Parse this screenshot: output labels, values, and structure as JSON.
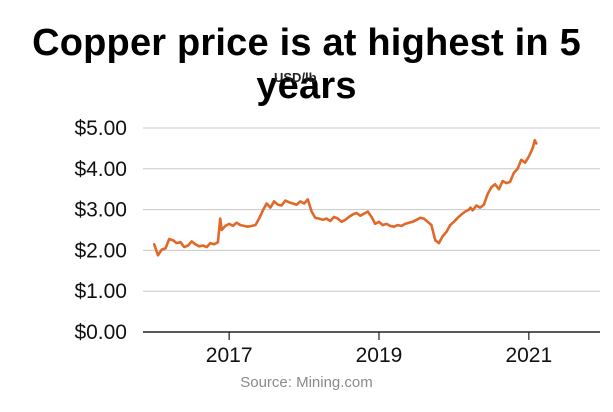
{
  "chart_data": {
    "type": "line",
    "title": "Copper price is at highest in 5 years",
    "subtitle": "USD/lb",
    "source": "Source: Mining.com",
    "ylim": [
      0,
      5
    ],
    "y_ticks": [
      {
        "value": 0,
        "label": "$0.00"
      },
      {
        "value": 1,
        "label": "$1.00"
      },
      {
        "value": 2,
        "label": "$2.00"
      },
      {
        "value": 3,
        "label": "$3.00"
      },
      {
        "value": 4,
        "label": "$4.00"
      },
      {
        "value": 5,
        "label": "$5.00"
      }
    ],
    "xlim": [
      2015.85,
      2021.95
    ],
    "x_ticks": [
      {
        "value": 2017,
        "label": "2017"
      },
      {
        "value": 2019,
        "label": "2019"
      },
      {
        "value": 2021,
        "label": "2021"
      }
    ],
    "grid": true,
    "series": [
      {
        "color": "#e0692a",
        "x": [
          2016.0,
          2016.05,
          2016.1,
          2016.15,
          2016.2,
          2016.25,
          2016.3,
          2016.35,
          2016.4,
          2016.45,
          2016.5,
          2016.55,
          2016.6,
          2016.65,
          2016.7,
          2016.75,
          2016.8,
          2016.85,
          2016.88,
          2016.9,
          2016.95,
          2017.0,
          2017.05,
          2017.1,
          2017.15,
          2017.2,
          2017.25,
          2017.3,
          2017.35,
          2017.4,
          2017.45,
          2017.5,
          2017.55,
          2017.6,
          2017.65,
          2017.7,
          2017.75,
          2017.8,
          2017.85,
          2017.9,
          2017.95,
          2018.0,
          2018.05,
          2018.1,
          2018.15,
          2018.2,
          2018.25,
          2018.3,
          2018.35,
          2018.4,
          2018.45,
          2018.5,
          2018.55,
          2018.6,
          2018.65,
          2018.7,
          2018.75,
          2018.8,
          2018.85,
          2018.9,
          2018.95,
          2019.0,
          2019.05,
          2019.1,
          2019.15,
          2019.2,
          2019.25,
          2019.3,
          2019.35,
          2019.4,
          2019.45,
          2019.5,
          2019.55,
          2019.6,
          2019.65,
          2019.7,
          2019.75,
          2019.8,
          2019.85,
          2019.9,
          2019.95,
          2020.0,
          2020.05,
          2020.1,
          2020.15,
          2020.2,
          2020.22,
          2020.25,
          2020.3,
          2020.35,
          2020.4,
          2020.45,
          2020.5,
          2020.55,
          2020.6,
          2020.65,
          2020.7,
          2020.75,
          2020.8,
          2020.85,
          2020.9,
          2020.95,
          2021.0,
          2021.05,
          2021.08,
          2021.1
        ],
        "y": [
          2.15,
          1.88,
          2.02,
          2.05,
          2.28,
          2.25,
          2.18,
          2.2,
          2.08,
          2.12,
          2.22,
          2.15,
          2.1,
          2.12,
          2.08,
          2.18,
          2.15,
          2.2,
          2.78,
          2.5,
          2.6,
          2.65,
          2.6,
          2.68,
          2.62,
          2.6,
          2.58,
          2.6,
          2.62,
          2.78,
          2.98,
          3.15,
          3.05,
          3.2,
          3.12,
          3.1,
          3.22,
          3.18,
          3.15,
          3.12,
          3.2,
          3.15,
          3.25,
          2.95,
          2.8,
          2.78,
          2.75,
          2.78,
          2.72,
          2.82,
          2.78,
          2.7,
          2.75,
          2.82,
          2.88,
          2.92,
          2.85,
          2.9,
          2.95,
          2.82,
          2.65,
          2.7,
          2.62,
          2.65,
          2.6,
          2.58,
          2.62,
          2.6,
          2.65,
          2.68,
          2.7,
          2.75,
          2.8,
          2.78,
          2.7,
          2.62,
          2.25,
          2.18,
          2.35,
          2.45,
          2.62,
          2.7,
          2.8,
          2.88,
          2.95,
          3.0,
          3.05,
          2.98,
          3.1,
          3.05,
          3.12,
          3.38,
          3.55,
          3.62,
          3.5,
          3.7,
          3.65,
          3.68,
          3.9,
          4.0,
          4.22,
          4.15,
          4.3,
          4.5,
          4.7,
          4.62
        ]
      }
    ]
  }
}
